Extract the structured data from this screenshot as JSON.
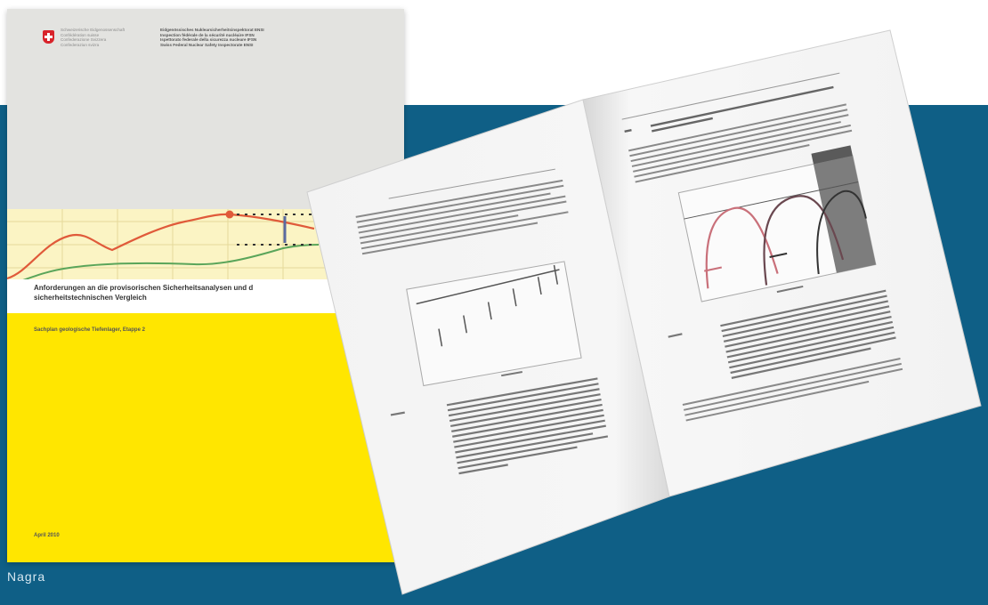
{
  "credit": "Nagra",
  "cover": {
    "confederation_lines": [
      "Schweizerische Eidgenossenschaft",
      "Confédération suisse",
      "Confederazione Svizzera",
      "Confederaziun svizra"
    ],
    "department_lines": [
      "Eidgenössisches Nuklearsicherheitsinspektorat ENSI",
      "Inspection fédérale de la sécurité nucléaire IFSN",
      "Ispettorato federale della sicurezza nucleare IFSN",
      "Swiss Federal Nuclear Safety Inspectorate ENSI"
    ],
    "title_line1": "Anforderungen an die provisorischen Sicherheitsanalysen und d",
    "title_line2": "sicherheitstechnischen Vergleich",
    "subtitle": "Sachplan geologische Tiefenlager, Etappe 2",
    "date": "April 2010"
  },
  "colors": {
    "background_blue": "#0f5f86",
    "cover_yellow": "#ffe600",
    "cover_grey": "#e3e3e0",
    "chart_red": "#e05a3a",
    "chart_green": "#5aa55a"
  }
}
